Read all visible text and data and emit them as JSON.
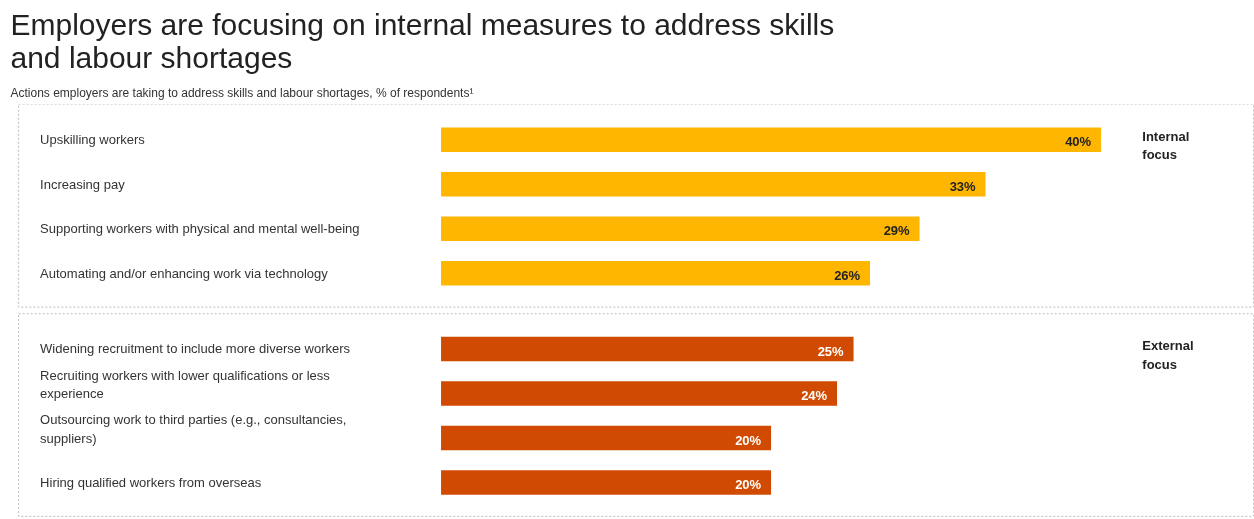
{
  "chart_data": {
    "type": "bar",
    "orientation": "horizontal",
    "title": "Employers are focusing on internal measures to address skills and labour shortages",
    "subtitle": "Actions employers are taking to address skills and labour shortages, % of respondents¹",
    "categories": [
      "Upskilling workers",
      "Increasing pay",
      "Supporting workers with physical and mental well-being",
      "Automating and/or enhancing work via technology",
      "Widening recruitment to include more diverse workers",
      "Recruiting workers with lower qualifications or less experience",
      "Outsourcing work to third parties (e.g., consultancies, suppliers)",
      "Hiring qualified workers from overseas"
    ],
    "values": [
      40,
      33,
      29,
      26,
      25,
      24,
      20,
      20
    ],
    "value_labels": [
      "40%",
      "33%",
      "29%",
      "26%",
      "25%",
      "24%",
      "20%",
      "20%"
    ],
    "colors": [
      "#ffb600",
      "#ffb600",
      "#ffb600",
      "#ffb600",
      "#d04a02",
      "#d04a02",
      "#d04a02",
      "#d04a02"
    ],
    "annotations": [
      "Internal focus",
      "External focus"
    ]
  }
}
